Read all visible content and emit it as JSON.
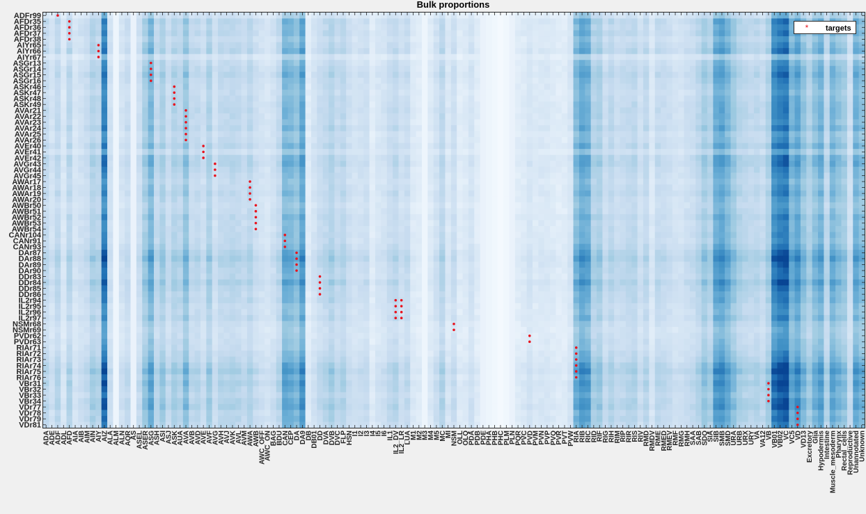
{
  "chart_data": {
    "type": "heatmap",
    "title": "Bulk proportions",
    "legend": {
      "entries": [
        "targets"
      ],
      "placement": "top-right",
      "marker": "*",
      "marker_color": "#e8141e"
    },
    "colormap": {
      "low": "#f7fbff",
      "high": "#08306b"
    },
    "grid": false,
    "rows": [
      "ADFr99",
      "AFDr35",
      "AFDr36",
      "AFDr37",
      "AFDr38",
      "AIYr65",
      "AIYr66",
      "AIYr67",
      "ASGr13",
      "ASGr14",
      "ASGr15",
      "ASGr16",
      "ASKr46",
      "ASKr47",
      "ASKr48",
      "ASKr49",
      "AVAr21",
      "AVAr22",
      "AVAr23",
      "AVAr24",
      "AVAr25",
      "AVAr26",
      "AVEr40",
      "AVEr41",
      "AVEr42",
      "AVGr43",
      "AVGr44",
      "AVGr45",
      "AWAr17",
      "AWAr18",
      "AWAr19",
      "AWAr20",
      "AWBr50",
      "AWBr51",
      "AWBr52",
      "AWBr53",
      "AWBr54",
      "CANr104",
      "CANr91",
      "CANr93",
      "DAr87",
      "DAr88",
      "DAr89",
      "DAr90",
      "DDr83",
      "DDr84",
      "DDr85",
      "DDr86",
      "IL2r94",
      "IL2r95",
      "IL2r96",
      "IL2r97",
      "NSMr68",
      "NSMr69",
      "PVDr62",
      "PVDr63",
      "RIAr71",
      "RIAr72",
      "RIAr73",
      "RIAr74",
      "RIAr75",
      "RIAr76",
      "VBr31",
      "VBr32",
      "VBr33",
      "VBr34",
      "VDr77",
      "VDr78",
      "VDr79",
      "VDr81"
    ],
    "columns": [
      "ADA",
      "ADE",
      "ADF",
      "ADL",
      "AFD",
      "AIA",
      "AIB",
      "AIM",
      "AIN",
      "AIY",
      "AIZ",
      "ALA",
      "ALM",
      "ALN",
      "AQR",
      "AS",
      "ASEL",
      "ASER",
      "ASG",
      "ASH",
      "ASI",
      "ASJ",
      "ASK",
      "AUA",
      "AVA",
      "AVB",
      "AVD",
      "AVE",
      "AVF",
      "AVG",
      "AVH",
      "AVJ",
      "AVK",
      "AVL",
      "AVM",
      "AWA",
      "AWB",
      "AWC_OFF",
      "AWC_ON",
      "BAG",
      "BDU",
      "CAN",
      "CEP",
      "DA",
      "DA9",
      "DB",
      "DB01",
      "DD",
      "DVA",
      "DVB",
      "DVC",
      "FLP",
      "HSN",
      "I1",
      "I2",
      "I3",
      "I4",
      "I5",
      "I6",
      "IL1",
      "IL2_DV",
      "IL2_LR",
      "LUA",
      "M1",
      "M2",
      "M3",
      "M4",
      "M5",
      "MC",
      "MI",
      "NSM",
      "OLL",
      "OLQ",
      "PDA",
      "PDB",
      "PDE",
      "PHA",
      "PHB",
      "PHC",
      "PLM",
      "PLN",
      "PQR",
      "PVC",
      "PVD",
      "PVM",
      "PVN",
      "PVP",
      "PVQ",
      "PVR",
      "PVT",
      "PVW",
      "RIA",
      "RIB",
      "RIC",
      "RID",
      "RIF",
      "RIG",
      "RIH",
      "RIM",
      "RIP",
      "RIR",
      "RIS",
      "RIV",
      "RMD",
      "RMDV",
      "RME",
      "RMED",
      "RMEV",
      "RMF",
      "RMG",
      "RMH",
      "SAA",
      "SAB",
      "SDQ",
      "SIA",
      "SIB",
      "SMB",
      "SMD",
      "URA",
      "URB",
      "URX",
      "URY",
      "VA",
      "VA12",
      "VB",
      "VB01",
      "VB02",
      "VC",
      "VC5",
      "VD",
      "VD13",
      "Excretory",
      "Glia",
      "Hypodermis",
      "Intestine",
      "Muscle_mesoderm",
      "Pharynx",
      "Rectal_cells",
      "Reproductive",
      "Unannotated",
      "Unknown"
    ],
    "column_weights": [
      0.26,
      0.18,
      0.28,
      0.14,
      0.3,
      0.16,
      0.2,
      0.24,
      0.34,
      0.3,
      0.86,
      0.2,
      0.06,
      0.18,
      0.24,
      0.08,
      0.22,
      0.4,
      0.56,
      0.28,
      0.38,
      0.24,
      0.34,
      0.3,
      0.46,
      0.26,
      0.28,
      0.22,
      0.36,
      0.2,
      0.28,
      0.28,
      0.3,
      0.28,
      0.24,
      0.3,
      0.22,
      0.18,
      0.16,
      0.2,
      0.28,
      0.56,
      0.54,
      0.48,
      0.66,
      0.1,
      0.18,
      0.24,
      0.28,
      0.34,
      0.26,
      0.3,
      0.22,
      0.18,
      0.2,
      0.22,
      0.1,
      0.16,
      0.18,
      0.24,
      0.28,
      0.2,
      0.24,
      0.12,
      0.1,
      0.06,
      0.12,
      0.2,
      0.3,
      0.14,
      0.22,
      0.1,
      0.12,
      0.18,
      0.1,
      0.08,
      0.06,
      0.04,
      0.02,
      0.04,
      0.08,
      0.1,
      0.12,
      0.16,
      0.12,
      0.14,
      0.14,
      0.12,
      0.1,
      0.1,
      0.16,
      0.52,
      0.64,
      0.6,
      0.34,
      0.38,
      0.24,
      0.3,
      0.24,
      0.26,
      0.28,
      0.3,
      0.2,
      0.28,
      0.14,
      0.26,
      0.24,
      0.22,
      0.18,
      0.18,
      0.22,
      0.24,
      0.3,
      0.4,
      0.34,
      0.62,
      0.66,
      0.56,
      0.44,
      0.34,
      0.3,
      0.28,
      0.3,
      0.26,
      0.36,
      0.8,
      0.88,
      0.92,
      0.56,
      0.66,
      0.48,
      0.36,
      0.5,
      0.58,
      0.3,
      0.56,
      0.48,
      0.42,
      0.22,
      0.58,
      0.5
    ],
    "row_weights": [
      0.0,
      0.3,
      0.22,
      0.28,
      0.14,
      0.24,
      0.34,
      -0.06,
      0.18,
      0.26,
      0.34,
      0.24,
      0.2,
      0.14,
      0.2,
      0.24,
      0.26,
      0.24,
      0.2,
      0.3,
      0.14,
      0.18,
      0.3,
      0.08,
      0.34,
      0.36,
      0.26,
      0.22,
      0.14,
      0.2,
      0.26,
      0.16,
      0.1,
      0.16,
      0.26,
      0.18,
      0.2,
      0.22,
      0.2,
      0.28,
      0.42,
      0.52,
      0.38,
      0.32,
      0.3,
      0.46,
      0.34,
      0.26,
      0.28,
      0.18,
      0.16,
      0.24,
      0.1,
      0.04,
      0.06,
      0.12,
      0.14,
      0.22,
      0.28,
      0.44,
      0.56,
      0.38,
      0.48,
      0.4,
      0.3,
      0.42,
      0.46,
      0.3,
      0.34,
      0.26
    ],
    "targets": [
      {
        "col": "ADF",
        "rows": [
          "ADFr99"
        ]
      },
      {
        "col": "AFD",
        "rows": [
          "AFDr35",
          "AFDr36",
          "AFDr37",
          "AFDr38"
        ]
      },
      {
        "col": "AIY",
        "rows": [
          "AIYr65",
          "AIYr66",
          "AIYr67"
        ]
      },
      {
        "col": "ASG",
        "rows": [
          "ASGr13",
          "ASGr14",
          "ASGr15",
          "ASGr16"
        ]
      },
      {
        "col": "ASK",
        "rows": [
          "ASKr46",
          "ASKr47",
          "ASKr48",
          "ASKr49"
        ]
      },
      {
        "col": "AVA",
        "rows": [
          "AVAr21",
          "AVAr22",
          "AVAr23",
          "AVAr24",
          "AVAr25",
          "AVAr26"
        ]
      },
      {
        "col": "AVE",
        "rows": [
          "AVEr40",
          "AVEr41",
          "AVEr42"
        ]
      },
      {
        "col": "AVG",
        "rows": [
          "AVGr43",
          "AVGr44",
          "AVGr45"
        ]
      },
      {
        "col": "AWA",
        "rows": [
          "AWAr17",
          "AWAr18",
          "AWAr19",
          "AWAr20"
        ]
      },
      {
        "col": "AWB",
        "rows": [
          "AWBr50",
          "AWBr51",
          "AWBr52",
          "AWBr53",
          "AWBr54"
        ]
      },
      {
        "col": "CAN",
        "rows": [
          "CANr104",
          "CANr91",
          "CANr93"
        ]
      },
      {
        "col": "DA",
        "rows": [
          "DAr87",
          "DAr88",
          "DAr89",
          "DAr90"
        ]
      },
      {
        "col": "DD",
        "rows": [
          "DDr83",
          "DDr84",
          "DDr85",
          "DDr86"
        ]
      },
      {
        "col": "IL2_DV",
        "rows": [
          "IL2r94",
          "IL2r95",
          "IL2r96",
          "IL2r97"
        ]
      },
      {
        "col": "IL2_LR",
        "rows": [
          "IL2r94",
          "IL2r95",
          "IL2r96",
          "IL2r97"
        ]
      },
      {
        "col": "NSM",
        "rows": [
          "NSMr68",
          "NSMr69"
        ]
      },
      {
        "col": "PVD",
        "rows": [
          "PVDr62",
          "PVDr63"
        ]
      },
      {
        "col": "RIA",
        "rows": [
          "RIAr71",
          "RIAr72",
          "RIAr73",
          "RIAr74",
          "RIAr75",
          "RIAr76"
        ]
      },
      {
        "col": "VB",
        "rows": [
          "VBr31",
          "VBr32",
          "VBr33",
          "VBr34"
        ]
      },
      {
        "col": "VD",
        "rows": [
          "VDr77",
          "VDr78",
          "VDr79",
          "VDr81"
        ]
      }
    ]
  }
}
